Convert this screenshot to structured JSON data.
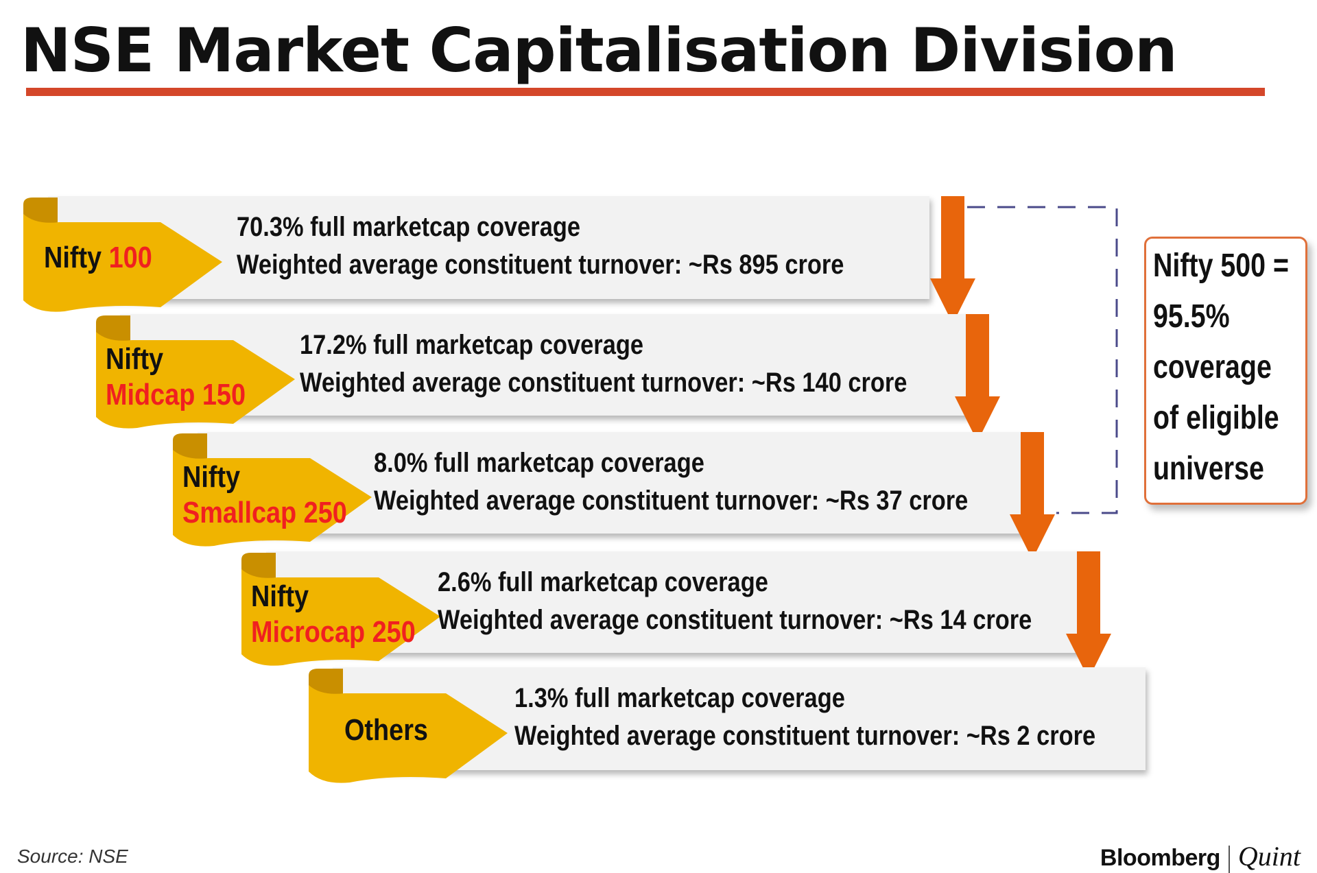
{
  "title": "NSE Market Capitalisation Division",
  "tiers": [
    {
      "label_line1": "Nifty",
      "label_line2": "100",
      "inline": true,
      "coverage": "70.3% full marketcap coverage",
      "turnover": "Weighted average constituent turnover: ~Rs 895 crore"
    },
    {
      "label_line1": "Nifty",
      "label_line2": "Midcap 150",
      "inline": false,
      "coverage": "17.2% full marketcap coverage",
      "turnover": "Weighted average constituent turnover: ~Rs 140 crore"
    },
    {
      "label_line1": "Nifty",
      "label_line2": "Smallcap 250",
      "inline": false,
      "coverage": "8.0% full marketcap coverage",
      "turnover": "Weighted average constituent turnover: ~Rs 37 crore"
    },
    {
      "label_line1": "Nifty",
      "label_line2": "Microcap 250",
      "inline": false,
      "coverage": "2.6% full marketcap coverage",
      "turnover": "Weighted average constituent turnover: ~Rs 14 crore"
    },
    {
      "label_line1": "Others",
      "label_line2": "",
      "inline": false,
      "coverage": "1.3% full marketcap coverage",
      "turnover": " Weighted average constituent turnover: ~Rs 2 crore"
    }
  ],
  "summary": {
    "lines": [
      "Nifty 500 =",
      "95.5%",
      "coverage",
      "of eligible",
      "universe"
    ]
  },
  "footer": {
    "source": "Source: NSE",
    "brand_primary": "Bloomberg",
    "brand_secondary": "Quint"
  },
  "colors": {
    "ribbon": "#f0b400",
    "ribbon_dark": "#c98f00",
    "arrow": "#e8650c",
    "accent_red": "#f02020",
    "title_rule": "#d4472a",
    "dash": "#4a4a8a"
  }
}
